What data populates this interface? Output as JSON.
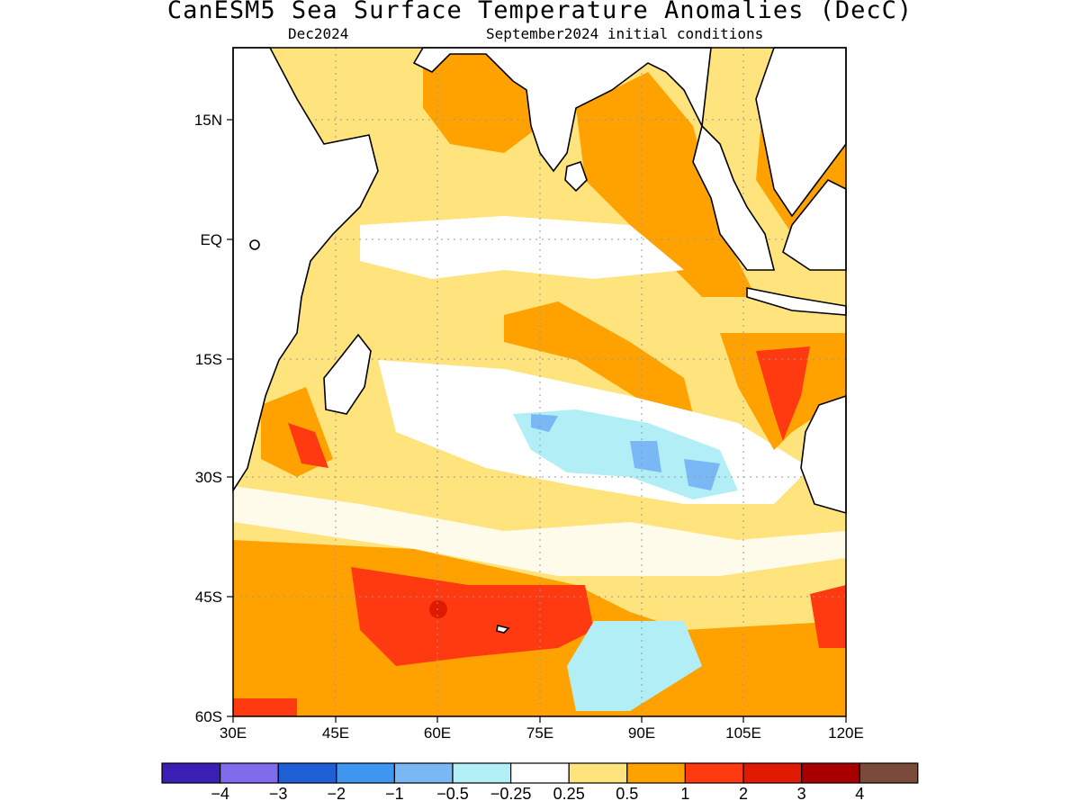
{
  "title": "CanESM5 Sea Surface Temperature Anomalies (DecC)",
  "subtitle_left": "Dec2024",
  "subtitle_right": "September2024 initial conditions",
  "map": {
    "lon_range": [
      30,
      120
    ],
    "lat_range": [
      -60,
      27
    ],
    "lon_ticks": [
      "30E",
      "45E",
      "60E",
      "75E",
      "90E",
      "105E",
      "120E"
    ],
    "lat_ticks": [
      "15N",
      "EQ",
      "15S",
      "30S",
      "45S",
      "60S"
    ],
    "grid": "dotted"
  },
  "colorbar": {
    "colors": [
      "#3a1fb5",
      "#7f6bec",
      "#1f5fd6",
      "#3e96f0",
      "#79b8f5",
      "#b2eef6",
      "#ffffff",
      "#ffe37c",
      "#ffa200",
      "#ff3a10",
      "#e01a00",
      "#a80000",
      "#7a4a3a"
    ],
    "labels": [
      "−4",
      "−3",
      "−2",
      "−1",
      "−0.5",
      "−0.25",
      "0.25",
      "0.5",
      "1",
      "2",
      "3",
      "4"
    ]
  }
}
